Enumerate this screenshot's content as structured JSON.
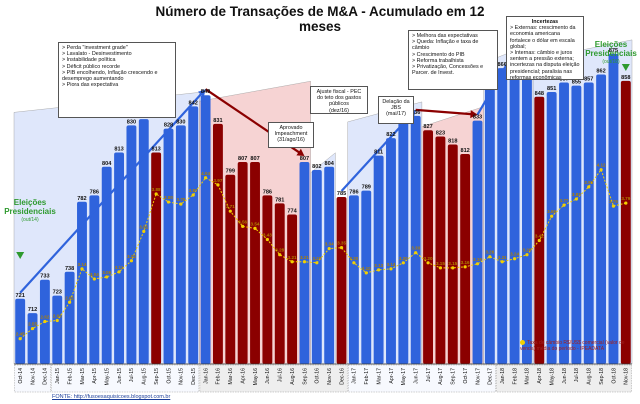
{
  "title": "Número de Transações de M&A - Acumulado em 12 meses",
  "source_label": "FONTE: http://fusoesaquisicoes.blogspot.com.br",
  "fx_legend_label": "Taxa de câmbio R$/US$ comercial (valor de venda) média do período - IPEADATA",
  "eleicoes_left": {
    "title": "Eleições Presidenciais",
    "sub": "(out/14)"
  },
  "eleicoes_right": {
    "title": "Eleições Presidenciais",
    "sub": "(out/18)"
  },
  "annotations": {
    "crisis": [
      "> Perda \"investment grade\"",
      "> Lavalato - Desinvestimento",
      "> Instabilidade política",
      "> Déficit público recorde",
      "> PIB encolhendo, Inflação crescendo e desemprego aumentando",
      "> Piora das expectativa"
    ],
    "impeachment": [
      "Aprovado",
      "Impeachment",
      "(31/ago/16)"
    ],
    "ajuste": [
      "Ajuste fiscal - PEC do teto dos gastos públicos",
      "(dez/16)"
    ],
    "delacao": [
      "Delação da JBS",
      "(mai/17)"
    ],
    "expectativas": [
      "> Melhora das expectativas",
      "> Queda: Inflação e taxa de câmbio",
      "> Crescimento do PIB",
      "> Reforma trabalhista",
      "> Privatização, Concessões e Parcer. de Invest."
    ],
    "incertezas": [
      "Incertezas",
      "> Externas: crescimento da economia americana fortalece o dólar em escala global;",
      "> Internas: câmbio e juros sentem a pressão externa; incertezas na disputa eleição presidencial; paralisia nas reformas econômicas"
    ]
  },
  "colors": {
    "blue": "#2f63dc",
    "red": "#8b0000",
    "fx_line": "#f3d000",
    "fx_label": "#b08000",
    "shade_red": "#f6d3d3",
    "shade_blue": "#dfe7fb"
  },
  "chart_data": {
    "type": "bar",
    "title": "Número de Transações de M&A - Acumulado em 12 meses",
    "categories": [
      "Oct-14",
      "Nov-14",
      "Dec-14",
      "Jan-15",
      "Feb-15",
      "Mar-15",
      "Apr-15",
      "May-15",
      "Jun-15",
      "Jul-15",
      "Aug-15",
      "Sep-15",
      "Oct-15",
      "Nov-15",
      "Dec-15",
      "Jan-16",
      "Feb-16",
      "Mar-16",
      "Apr-16",
      "May-16",
      "Jun-16",
      "Jul-16",
      "Aug-16",
      "Sep-16",
      "Oct-16",
      "Nov-16",
      "Dec-16",
      "Jan-17",
      "Feb-17",
      "Mar-17",
      "Apr-17",
      "May-17",
      "Jun-17",
      "Jul-17",
      "Aug-17",
      "Sep-17",
      "Oct-17",
      "Nov-17",
      "Dec-17",
      "Jan-18",
      "Feb-18",
      "Mar-18",
      "Apr-18",
      "May-18",
      "Jun-18",
      "Jul-18",
      "Aug-18",
      "Sep-18",
      "Oct-18",
      "Nov-18"
    ],
    "x_tick_labels": [
      "Oct-14",
      "Nov-14",
      "Dec-14",
      "Jan-15",
      "Feb-15",
      "Mar-15",
      "Apr-15",
      "May-15",
      "Jun-15",
      "Jul-15",
      "Aug-15",
      "Sep-15",
      "Oct-15",
      "Nov-15",
      "Dec-15",
      "Jan-16",
      "Feb-16",
      "Mar-16",
      "Apr-16",
      "May-16",
      "Jun-16",
      "Jul-16",
      "Aug-16",
      "Sep-16",
      "Oct-16",
      "Nov-16",
      "Dec-16",
      "Jan-17",
      "Feb-17",
      "Mar-17",
      "Apr-17",
      "May-17",
      "Jun-17",
      "Jul-17",
      "Aug-17",
      "Sep-17",
      "Oct-17",
      "Nov-17",
      "Dec-17",
      "Jan-18",
      "Feb-18",
      "Mar-18",
      "Apr-18",
      "May-18",
      "Jun-18",
      "Jul-18",
      "Aug-18",
      "Sep-18",
      "Oct-18",
      "Nov-18"
    ],
    "series": [
      {
        "values": [
          721,
          712,
          733,
          723,
          738,
          782,
          786,
          804,
          813,
          830,
          834,
          813,
          828,
          830,
          842,
          849,
          831,
          799,
          807,
          807,
          786,
          781,
          774,
          807,
          802,
          804,
          785,
          786,
          789,
          811,
          822,
          832,
          836,
          827,
          823,
          818,
          812,
          833,
          856,
          866,
          873,
          866,
          848,
          851,
          857,
          855,
          857,
          862,
          875,
          858
        ],
        "labels": [
          "721",
          "712",
          "733",
          "723",
          "738",
          "782",
          "786",
          "804",
          "813",
          "830",
          "834",
          "813",
          "828",
          "830",
          "842",
          "849",
          "831",
          "799",
          "807",
          "807",
          "786",
          "781",
          "774",
          "807",
          "802",
          "804",
          "785",
          "786",
          "789",
          "811",
          "822",
          "832",
          "836",
          "827",
          "823",
          "818",
          "812",
          "833",
          "856",
          "866",
          "873",
          "866",
          "848",
          "851",
          "857",
          "855",
          "857",
          "862",
          "875",
          "858"
        ],
        "colors": [
          "blue",
          "blue",
          "blue",
          "blue",
          "blue",
          "blue",
          "blue",
          "blue",
          "blue",
          "blue",
          "blue",
          "red",
          "blue",
          "blue",
          "blue",
          "blue",
          "red",
          "red",
          "red",
          "red",
          "red",
          "red",
          "red",
          "blue",
          "blue",
          "blue",
          "red",
          "blue",
          "blue",
          "blue",
          "blue",
          "blue",
          "blue",
          "red",
          "red",
          "red",
          "red",
          "blue",
          "blue",
          "blue",
          "blue",
          "blue",
          "red",
          "blue",
          "blue",
          "blue",
          "blue",
          "blue",
          "blue",
          "red"
        ]
      },
      {
        "values": [
          2.45,
          2.55,
          2.62,
          2.63,
          2.81,
          3.14,
          3.04,
          3.06,
          3.11,
          3.22,
          3.51,
          3.88,
          3.8,
          3.78,
          3.87,
          4.04,
          3.97,
          3.71,
          3.56,
          3.54,
          3.43,
          3.28,
          3.21,
          3.21,
          3.2,
          3.34,
          3.35,
          3.2,
          3.1,
          3.13,
          3.14,
          3.2,
          3.3,
          3.2,
          3.15,
          3.15,
          3.16,
          3.19,
          3.26,
          3.21,
          3.24,
          3.28,
          3.42,
          3.66,
          3.77,
          3.83,
          3.95,
          4.12,
          3.76,
          3.79
        ],
        "labels": [
          "2.45",
          "2.55",
          "2.62",
          "2.63",
          "2.81",
          "3.14",
          "3.04",
          "3.06",
          "3.11",
          "3.22",
          "3.51",
          "3.88",
          "3.80",
          "3.78",
          "3.87",
          "4.04",
          "3.97",
          "3.71",
          "3.56",
          "3.54",
          "3.43",
          "3.28",
          "3.21",
          "3.21",
          "3.20",
          "3.34",
          "3.35",
          "3.20",
          "3.10",
          "3.13",
          "3.14",
          "3.20",
          "3.30",
          "3.20",
          "3.15",
          "3.15",
          "3.16",
          "3.19",
          "3.26",
          "3.21",
          "3.24",
          "3.28",
          "3.42",
          "3.66",
          "3.77",
          "3.83",
          "3.95",
          "4.12",
          "3.76",
          "3.79"
        ]
      }
    ],
    "ylim": [
      680,
      890
    ],
    "fx_ylim": [
      2.2,
      5.5
    ],
    "shaded_ranges": [
      {
        "from": "Oct-14",
        "to": "Dec-15",
        "color": "shade_blue"
      },
      {
        "from": "Jan-16",
        "to": "Sep-16",
        "color": "shade_red"
      },
      {
        "from": "Oct-16",
        "to": "Nov-16",
        "color": "shade_blue"
      },
      {
        "from": "Jan-17",
        "to": "Jun-17",
        "color": "shade_blue"
      },
      {
        "from": "Jul-17",
        "to": "Nov-17",
        "color": "shade_red"
      },
      {
        "from": "Dec-17",
        "to": "Mar-18",
        "color": "shade_blue"
      },
      {
        "from": "Apr-18",
        "to": "Nov-18",
        "color": "shade_blue"
      }
    ],
    "trend_ranges": [
      {
        "from": "Oct-14",
        "to": "Jan-16",
        "color": "blue"
      },
      {
        "from": "Jan-16",
        "to": "Sep-16",
        "color": "red"
      },
      {
        "from": "Dec-16",
        "to": "Jun-17",
        "color": "blue"
      },
      {
        "from": "Jun-17",
        "to": "Nov-17",
        "color": "red"
      },
      {
        "from": "Nov-17",
        "to": "Feb-18",
        "color": "blue"
      }
    ]
  }
}
